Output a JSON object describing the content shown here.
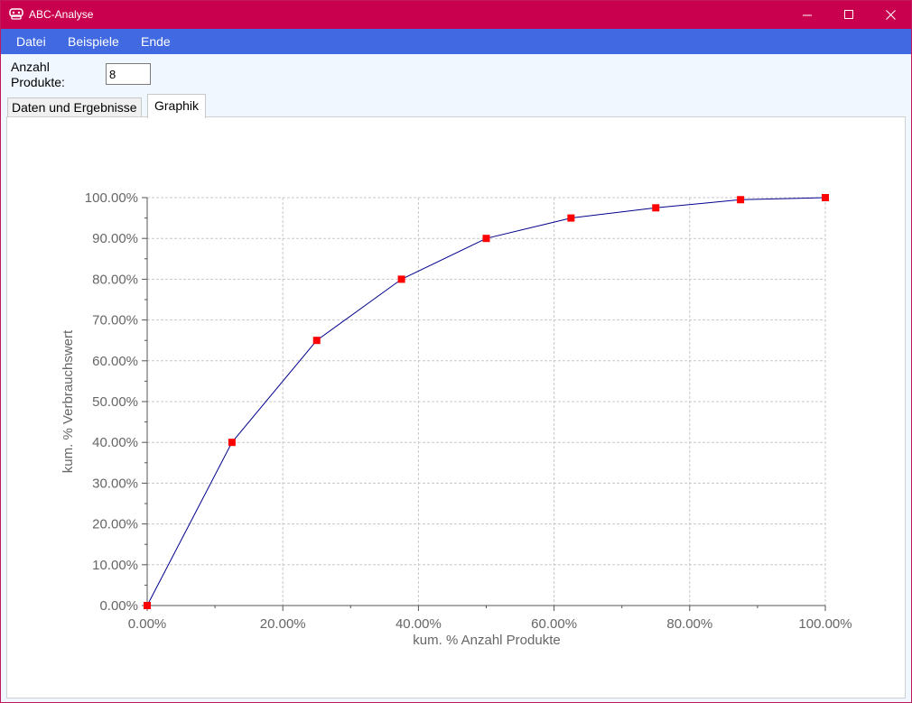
{
  "window": {
    "title": "ABC-Analyse"
  },
  "menu": {
    "items": [
      "Datei",
      "Beispiele",
      "Ende"
    ]
  },
  "form": {
    "label": "Anzahl Produkte:",
    "value": "8"
  },
  "tabs": [
    {
      "label": "Daten und Ergebnisse",
      "active": false
    },
    {
      "label": "Graphik",
      "active": true
    }
  ],
  "colors": {
    "titlebar": "#c8004e",
    "menubar": "#4169e1",
    "line": "#00008b",
    "marker": "#ff0000",
    "grid": "#c8c8c8"
  },
  "chart_data": {
    "type": "line",
    "xlabel": "kum. % Anzahl Produkte",
    "ylabel": "kum. % Verbrauchswert",
    "xlim": [
      0,
      100
    ],
    "ylim": [
      0,
      100
    ],
    "xticks": [
      "0.00%",
      "20.00%",
      "40.00%",
      "60.00%",
      "80.00%",
      "100.00%"
    ],
    "yticks": [
      "0.00%",
      "10.00%",
      "20.00%",
      "30.00%",
      "40.00%",
      "50.00%",
      "60.00%",
      "70.00%",
      "80.00%",
      "90.00%",
      "100.00%"
    ],
    "grid": true,
    "x": [
      0,
      12.5,
      25,
      37.5,
      50,
      62.5,
      75,
      87.5,
      100
    ],
    "y": [
      0,
      40,
      65,
      80,
      90,
      95,
      97.5,
      99.5,
      100
    ]
  }
}
